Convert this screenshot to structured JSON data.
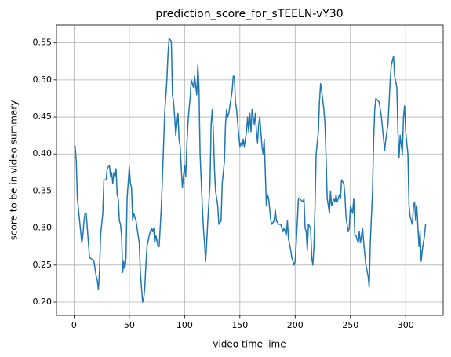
{
  "chart_data": {
    "type": "line",
    "title": "prediction_score_for_sTEELN-vY30",
    "xlabel": "video time lime",
    "ylabel": "score to be in video summary",
    "grid": true,
    "xlim": [
      -15.9,
      333.9
    ],
    "xticks": [
      0,
      50,
      100,
      150,
      200,
      250,
      300
    ],
    "ylim": [
      0.182,
      0.574
    ],
    "yticks": [
      {
        "value": 0.2,
        "label": "0.20"
      },
      0.25,
      {
        "value": 0.3,
        "label": "0.30"
      },
      0.35,
      {
        "value": 0.4,
        "label": "0.40"
      },
      0.45,
      {
        "value": 0.5,
        "label": "0.50"
      },
      0.55
    ],
    "series": [
      {
        "name": "prediction_score",
        "color": "#1f77b4",
        "x": [
          0,
          1,
          2,
          3,
          5,
          7,
          8,
          9,
          10,
          11,
          12,
          13,
          14,
          16,
          18,
          20,
          21,
          22,
          23,
          24,
          26,
          27,
          29,
          30,
          32,
          33,
          34,
          35,
          36,
          37,
          38,
          39,
          40,
          41,
          42,
          43,
          44,
          45,
          46,
          47,
          48,
          50,
          51,
          52,
          53,
          54,
          56,
          57,
          59,
          60,
          61,
          62,
          63,
          64,
          65,
          66,
          68,
          70,
          71,
          72,
          73,
          74,
          76,
          77,
          79,
          80,
          82,
          84,
          85,
          86,
          88,
          89,
          90,
          91,
          92,
          93,
          94,
          95,
          96,
          97,
          98,
          99,
          100,
          101,
          102,
          103,
          104,
          105,
          106,
          108,
          109,
          111,
          112,
          113,
          114,
          116,
          117,
          118,
          119,
          120,
          121,
          123,
          124,
          125,
          126,
          127,
          128,
          130,
          131,
          133,
          134,
          136,
          137,
          138,
          139,
          140,
          143,
          144,
          145,
          146,
          147,
          149,
          150,
          151,
          152,
          153,
          154,
          156,
          157,
          158,
          159,
          160,
          161,
          163,
          164,
          165,
          166,
          167,
          168,
          170,
          171,
          172,
          173,
          174,
          175,
          176,
          178,
          179,
          181,
          182,
          183,
          185,
          187,
          189,
          190,
          192,
          193,
          194,
          196,
          197,
          199,
          200,
          201,
          202,
          203,
          204,
          207,
          208,
          209,
          210,
          211,
          212,
          214,
          215,
          216,
          217,
          218,
          219,
          221,
          222,
          223,
          224,
          226,
          227,
          228,
          229,
          231,
          232,
          233,
          235,
          236,
          237,
          238,
          240,
          241,
          242,
          244,
          245,
          246,
          248,
          249,
          250,
          252,
          253,
          254,
          255,
          257,
          258,
          259,
          261,
          262,
          263,
          264,
          266,
          267,
          268,
          270,
          271,
          272,
          273,
          276,
          277,
          278,
          280,
          281,
          282,
          284,
          285,
          286,
          287,
          289,
          290,
          292,
          293,
          294,
          295,
          297,
          298,
          299,
          300,
          302,
          303,
          304,
          306,
          307,
          308,
          309,
          310,
          312,
          313,
          314,
          315,
          317,
          318
        ],
        "values": [
          0.41,
          0.41,
          0.39,
          0.34,
          0.31,
          0.28,
          0.29,
          0.31,
          0.32,
          0.32,
          0.3,
          0.28,
          0.26,
          0.258,
          0.255,
          0.235,
          0.23,
          0.217,
          0.24,
          0.29,
          0.32,
          0.365,
          0.365,
          0.38,
          0.385,
          0.37,
          0.375,
          0.36,
          0.375,
          0.37,
          0.38,
          0.345,
          0.34,
          0.31,
          0.305,
          0.29,
          0.24,
          0.255,
          0.245,
          0.26,
          0.34,
          0.383,
          0.36,
          0.355,
          0.31,
          0.32,
          0.31,
          0.3,
          0.28,
          0.24,
          0.22,
          0.2,
          0.205,
          0.22,
          0.25,
          0.275,
          0.29,
          0.3,
          0.295,
          0.3,
          0.28,
          0.29,
          0.275,
          0.275,
          0.33,
          0.37,
          0.455,
          0.5,
          0.535,
          0.556,
          0.552,
          0.48,
          0.47,
          0.45,
          0.425,
          0.44,
          0.455,
          0.42,
          0.41,
          0.38,
          0.355,
          0.37,
          0.385,
          0.37,
          0.41,
          0.44,
          0.46,
          0.475,
          0.5,
          0.49,
          0.505,
          0.48,
          0.52,
          0.49,
          0.4,
          0.33,
          0.3,
          0.28,
          0.255,
          0.28,
          0.31,
          0.36,
          0.44,
          0.46,
          0.43,
          0.38,
          0.35,
          0.33,
          0.305,
          0.31,
          0.36,
          0.39,
          0.44,
          0.46,
          0.45,
          0.455,
          0.485,
          0.505,
          0.505,
          0.47,
          0.46,
          0.425,
          0.41,
          0.415,
          0.41,
          0.42,
          0.41,
          0.43,
          0.45,
          0.43,
          0.455,
          0.43,
          0.46,
          0.44,
          0.455,
          0.43,
          0.415,
          0.44,
          0.45,
          0.41,
          0.4,
          0.42,
          0.375,
          0.33,
          0.345,
          0.34,
          0.31,
          0.305,
          0.31,
          0.325,
          0.31,
          0.305,
          0.305,
          0.295,
          0.3,
          0.29,
          0.31,
          0.285,
          0.27,
          0.26,
          0.25,
          0.255,
          0.28,
          0.31,
          0.34,
          0.34,
          0.335,
          0.34,
          0.3,
          0.295,
          0.27,
          0.305,
          0.3,
          0.26,
          0.25,
          0.275,
          0.33,
          0.4,
          0.43,
          0.47,
          0.495,
          0.485,
          0.46,
          0.44,
          0.395,
          0.34,
          0.32,
          0.35,
          0.33,
          0.34,
          0.335,
          0.345,
          0.335,
          0.345,
          0.34,
          0.365,
          0.36,
          0.345,
          0.315,
          0.295,
          0.3,
          0.33,
          0.32,
          0.34,
          0.29,
          0.29,
          0.28,
          0.295,
          0.28,
          0.3,
          0.28,
          0.265,
          0.25,
          0.235,
          0.22,
          0.28,
          0.35,
          0.42,
          0.46,
          0.475,
          0.47,
          0.46,
          0.45,
          0.42,
          0.405,
          0.42,
          0.44,
          0.47,
          0.5,
          0.52,
          0.532,
          0.505,
          0.49,
          0.43,
          0.395,
          0.425,
          0.4,
          0.45,
          0.465,
          0.43,
          0.4,
          0.33,
          0.315,
          0.305,
          0.33,
          0.335,
          0.31,
          0.33,
          0.275,
          0.295,
          0.255,
          0.27,
          0.29,
          0.305
        ]
      }
    ]
  }
}
